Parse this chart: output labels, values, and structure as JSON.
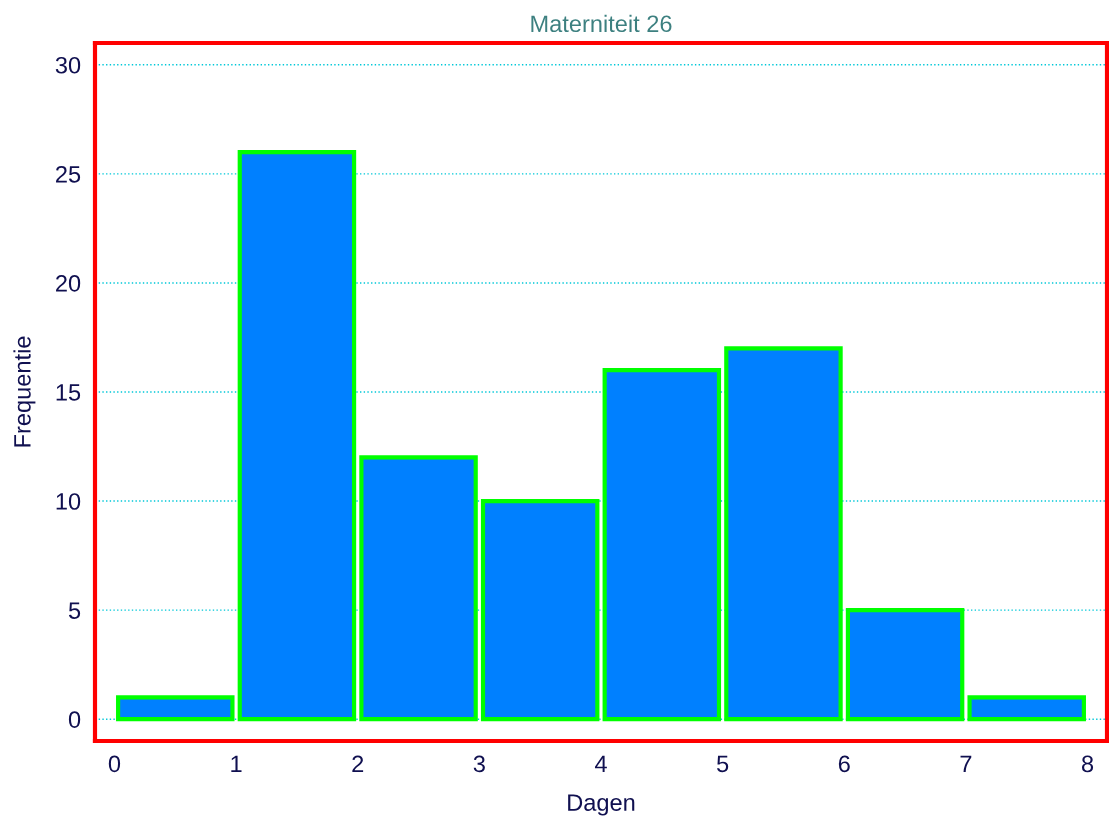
{
  "chart_data": {
    "type": "histogram",
    "title": "Materniteit 26",
    "xlabel": "Dagen",
    "ylabel": "Frequentie",
    "bins": [
      0,
      1,
      2,
      3,
      4,
      5,
      6,
      7,
      8
    ],
    "values": [
      1,
      26,
      12,
      10,
      16,
      17,
      5,
      1
    ],
    "color": "#0080ff",
    "xlim": [
      -0.16,
      8.16
    ],
    "xticks": [
      0,
      1,
      2,
      3,
      4,
      5,
      6,
      7,
      8
    ],
    "ylim": [
      -1,
      31
    ],
    "yticks": [
      0,
      5,
      10,
      15,
      20,
      25,
      30
    ],
    "grid": "y"
  }
}
